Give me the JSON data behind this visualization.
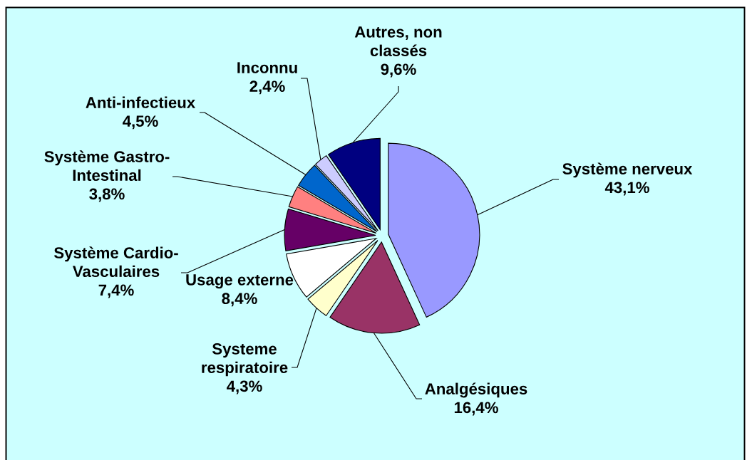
{
  "chart_data": {
    "type": "pie",
    "categories": [
      "Système nerveux",
      "Analgésiques",
      "Systeme\nrespiratoire",
      "Usage externe",
      "Système Cardio-\nVasculaires",
      "Système Gastro-\nIntestinal",
      "Anti-infectieux",
      "Inconnu",
      "Autres, non\nclassés"
    ],
    "values": [
      43.1,
      16.4,
      4.3,
      8.4,
      7.4,
      3.8,
      4.5,
      2.4,
      9.6
    ],
    "value_labels": [
      "43,1%",
      "16,4%",
      "4,3%",
      "8,4%",
      "7,4%",
      "3,8%",
      "4,5%",
      "2,4%",
      "9,6%"
    ],
    "colors": [
      "#9999ff",
      "#993366",
      "#ffffcc",
      "#ffffff",
      "#660066",
      "#ff8080",
      "#0066cc",
      "#ccccff",
      "#000080"
    ]
  }
}
